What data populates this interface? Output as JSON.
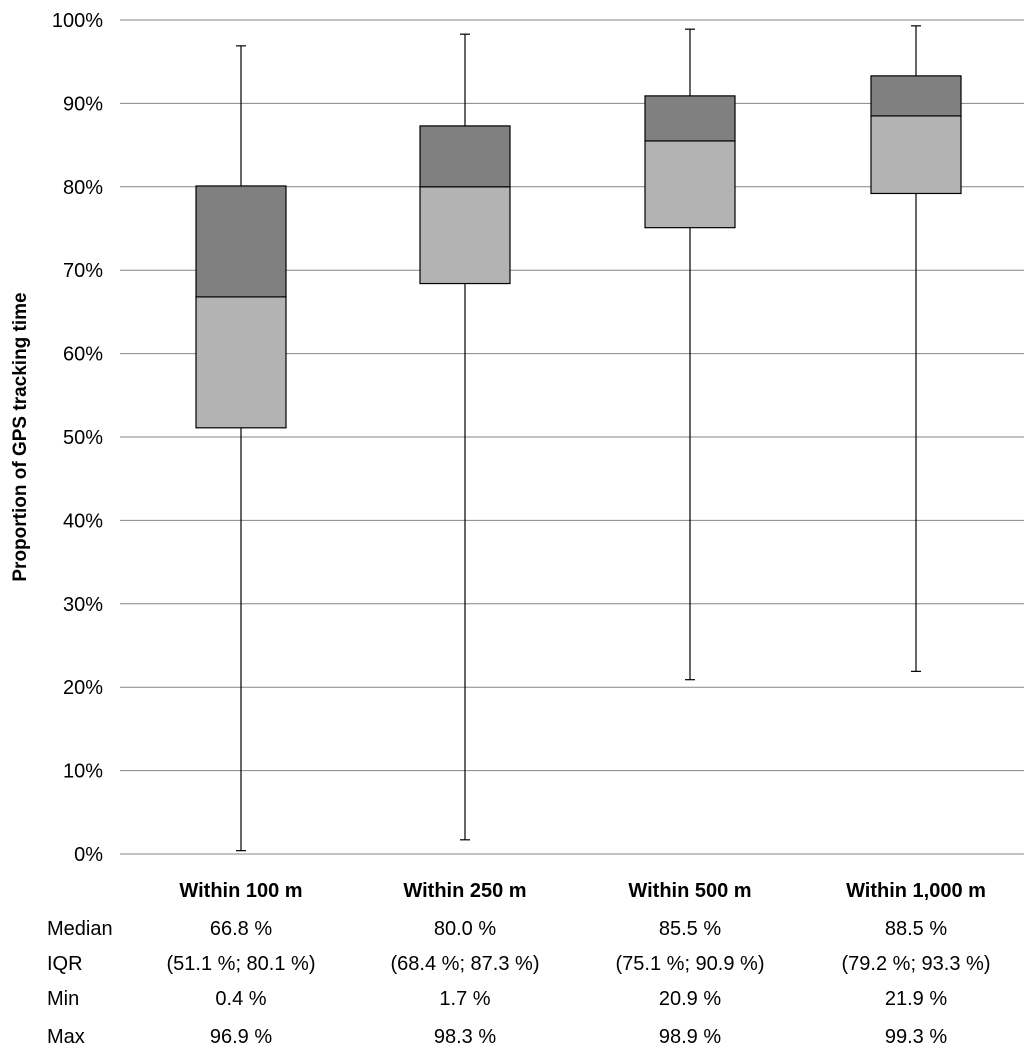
{
  "chart_data": {
    "type": "boxplot",
    "ylabel": "Proportion of GPS tracking time",
    "ylim": [
      0,
      100
    ],
    "y_ticks": [
      "0%",
      "10%",
      "20%",
      "30%",
      "40%",
      "50%",
      "60%",
      "70%",
      "80%",
      "90%",
      "100%"
    ],
    "grid": true,
    "lower_box_color": "#b3b3b3",
    "upper_box_color": "#808080",
    "categories": [
      "Within 100 m",
      "Within 250 m",
      "Within 500 m",
      "Within 1,000 m"
    ],
    "boxes": [
      {
        "min": 0.4,
        "q1": 51.1,
        "median": 66.8,
        "q3": 80.1,
        "max": 96.9
      },
      {
        "min": 1.7,
        "q1": 68.4,
        "median": 80.0,
        "q3": 87.3,
        "max": 98.3
      },
      {
        "min": 20.9,
        "q1": 75.1,
        "median": 85.5,
        "q3": 90.9,
        "max": 98.9
      },
      {
        "min": 21.9,
        "q1": 79.2,
        "median": 88.5,
        "q3": 93.3,
        "max": 99.3
      }
    ]
  },
  "stats_table": {
    "rows": [
      {
        "label": "Median",
        "values": [
          "66.8 %",
          "80.0 %",
          "85.5 %",
          "88.5 %"
        ]
      },
      {
        "label": "IQR",
        "values": [
          "(51.1 %; 80.1 %)",
          "(68.4 %; 87.3 %)",
          "(75.1 %; 90.9 %)",
          "(79.2 %; 93.3 %)"
        ]
      },
      {
        "label": "Min",
        "values": [
          "0.4 %",
          "1.7 %",
          "20.9 %",
          "21.9 %"
        ]
      },
      {
        "label": "Max",
        "values": [
          "96.9 %",
          "98.3 %",
          "98.9 %",
          "99.3 %"
        ]
      }
    ]
  }
}
